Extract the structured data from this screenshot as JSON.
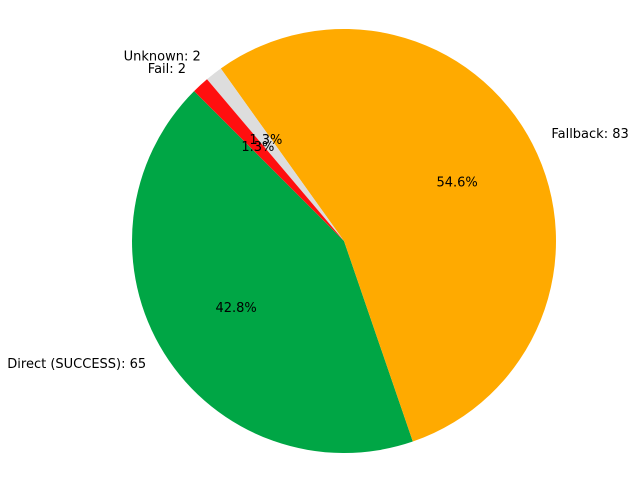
{
  "chart_data": {
    "type": "pie",
    "title": "",
    "start_angle_deg": 135,
    "direction": "counterclockwise",
    "slices": [
      {
        "label": "Direct (SUCCESS)",
        "value": 65,
        "label_text": "Direct (SUCCESS): 65",
        "pct_text": "42.8%",
        "color": "#00a645"
      },
      {
        "label": "Fallback",
        "value": 83,
        "label_text": "Fallback: 83",
        "pct_text": "54.6%",
        "color": "#ffaa00"
      },
      {
        "label": "Unknown",
        "value": 2,
        "label_text": "Unknown: 2",
        "pct_text": "1.3%",
        "color": "#dddddd"
      },
      {
        "label": "Fail",
        "value": 2,
        "label_text": "Fail: 2",
        "pct_text": "1.3%",
        "color": "#ff0f0f"
      }
    ]
  }
}
